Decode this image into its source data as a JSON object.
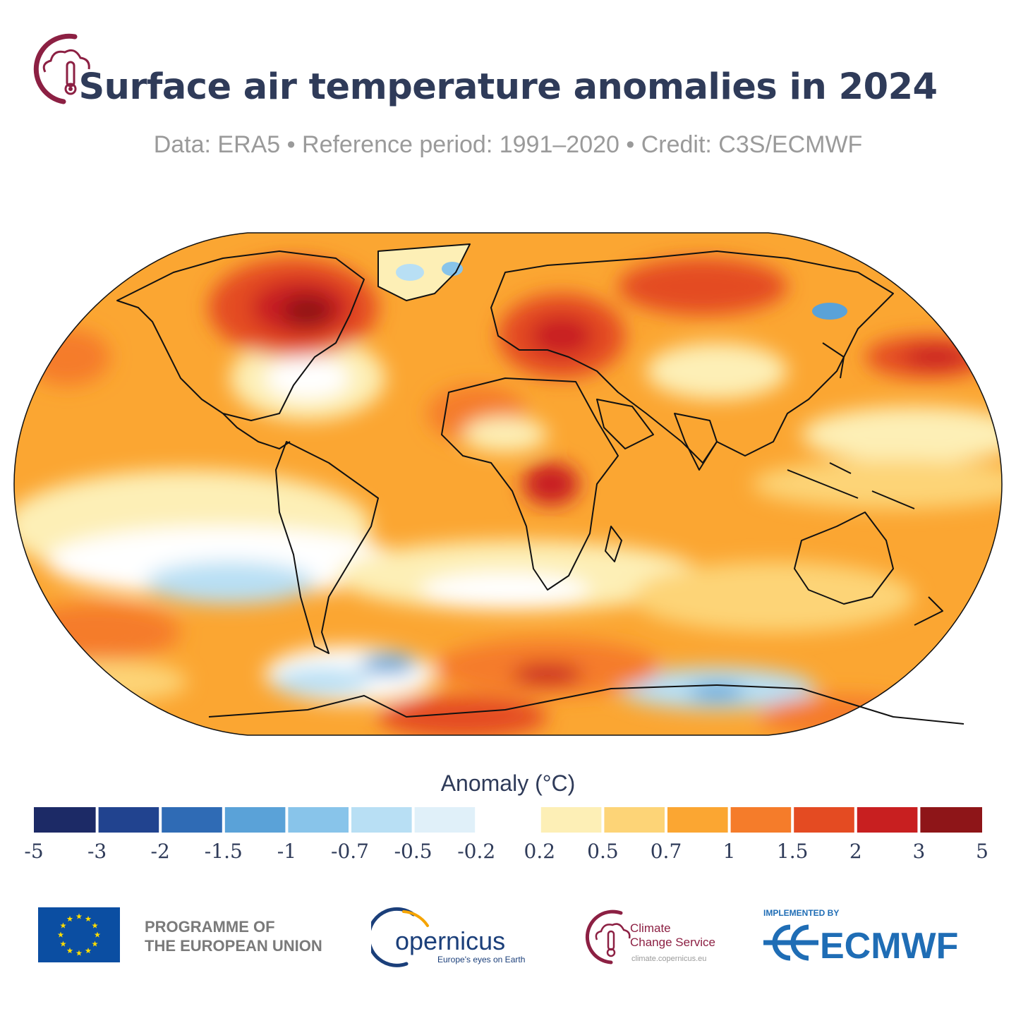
{
  "header": {
    "title": "Surface air temperature anomalies in 2024",
    "subtitle": "Data: ERA5 • Reference period: 1991–2020 • Credit: C3S/ECMWF",
    "mark_icon": "c3s-thermometer-cloud-icon"
  },
  "map": {
    "projection": "robinson",
    "variable": "surface air temperature anomaly",
    "year": 2024,
    "coastlines": true,
    "dominant_regions_warm": [
      "Arctic Canada",
      "Eastern Europe",
      "North Pacific",
      "Weddell Sea"
    ],
    "dominant_regions_cool": [
      "Eastern Pacific",
      "Southern Ocean near Antarctica",
      "Greenland ice sheet"
    ]
  },
  "colorbar": {
    "title": "Anomaly (°C)",
    "ticks": [
      "-5",
      "-3",
      "-2",
      "-1.5",
      "-1",
      "-0.7",
      "-0.5",
      "-0.2",
      "0.2",
      "0.5",
      "0.7",
      "1",
      "1.5",
      "2",
      "3",
      "5"
    ],
    "colors": [
      "#1c2a66",
      "#21438f",
      "#2f6bb5",
      "#5aa2d8",
      "#88c4ea",
      "#b8dff4",
      "#e0f0f9",
      "#ffffff",
      "#fdefb6",
      "#fdd477",
      "#fba632",
      "#f57c2a",
      "#e44b22",
      "#c81f20",
      "#8e1518"
    ]
  },
  "footer": {
    "eu_flag_icon": "eu-flag-icon",
    "eu_line1": "PROGRAMME OF",
    "eu_line2": "THE EUROPEAN UNION",
    "copernicus_name": "opernicus",
    "copernicus_tagline": "Europe's eyes on Earth",
    "c3s_line1": "Climate",
    "c3s_line2": "Change Service",
    "c3s_url": "climate.copernicus.eu",
    "ecmwf_impl": "IMPLEMENTED BY",
    "ecmwf_name": "ECMWF",
    "colors": {
      "c3s": "#8c2043",
      "ecmwf": "#1f6db5",
      "copernicus": "#1b3f7a",
      "eu": "#0b4ea2",
      "eu_star": "#ffdd00"
    }
  }
}
